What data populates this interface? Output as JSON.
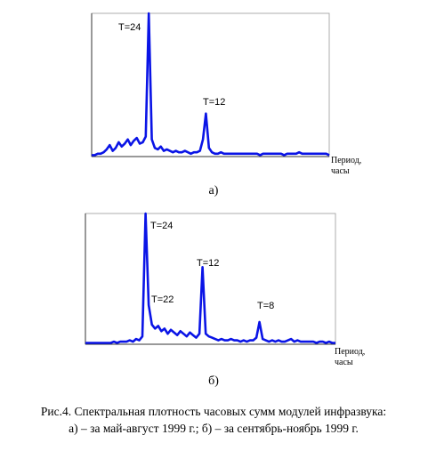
{
  "chart_data": [
    {
      "type": "line",
      "color": "#0a14e6",
      "ylim": [
        0,
        1
      ],
      "values": [
        0.01,
        0.01,
        0.02,
        0.02,
        0.03,
        0.05,
        0.08,
        0.04,
        0.06,
        0.1,
        0.07,
        0.09,
        0.12,
        0.08,
        0.11,
        0.13,
        0.09,
        0.1,
        0.14,
        1.0,
        0.12,
        0.06,
        0.05,
        0.07,
        0.04,
        0.05,
        0.04,
        0.03,
        0.04,
        0.03,
        0.03,
        0.04,
        0.03,
        0.02,
        0.03,
        0.03,
        0.04,
        0.12,
        0.3,
        0.06,
        0.03,
        0.02,
        0.02,
        0.03,
        0.02,
        0.02,
        0.02,
        0.02,
        0.02,
        0.02,
        0.02,
        0.02,
        0.02,
        0.02,
        0.02,
        0.02,
        0.01,
        0.02,
        0.02,
        0.02,
        0.02,
        0.02,
        0.02,
        0.02,
        0.01,
        0.02,
        0.02,
        0.02,
        0.02,
        0.03,
        0.02,
        0.02,
        0.02,
        0.02,
        0.02,
        0.02,
        0.02,
        0.02,
        0.02,
        0.01
      ],
      "annotations": [
        "T=24",
        "T=12"
      ],
      "xlabel": [
        "Период,",
        "часы"
      ],
      "panel_label": "а)"
    },
    {
      "type": "line",
      "color": "#0a14e6",
      "ylim": [
        0,
        1
      ],
      "values": [
        0.01,
        0.01,
        0.01,
        0.01,
        0.01,
        0.01,
        0.01,
        0.01,
        0.01,
        0.02,
        0.01,
        0.02,
        0.02,
        0.02,
        0.03,
        0.02,
        0.04,
        0.03,
        0.06,
        1.0,
        0.3,
        0.15,
        0.12,
        0.14,
        0.1,
        0.12,
        0.08,
        0.11,
        0.09,
        0.07,
        0.1,
        0.08,
        0.06,
        0.09,
        0.07,
        0.05,
        0.08,
        0.59,
        0.08,
        0.06,
        0.05,
        0.04,
        0.03,
        0.04,
        0.03,
        0.03,
        0.04,
        0.03,
        0.03,
        0.02,
        0.03,
        0.02,
        0.03,
        0.03,
        0.05,
        0.17,
        0.04,
        0.03,
        0.02,
        0.03,
        0.02,
        0.03,
        0.02,
        0.02,
        0.03,
        0.04,
        0.02,
        0.03,
        0.02,
        0.02,
        0.02,
        0.02,
        0.02,
        0.01,
        0.02,
        0.02,
        0.01,
        0.02,
        0.01,
        0.01
      ],
      "annotations": [
        "T=24",
        "T=22",
        "T=12",
        "T=8"
      ],
      "xlabel": [
        "Период,",
        "часы"
      ],
      "panel_label": "б)"
    }
  ],
  "caption": [
    "Рис.4. Спектральная плотность часовых сумм модулей инфразвука:",
    "а) – за май-август 1999 г.;    б) – за сентябрь-ноябрь 1999 г."
  ]
}
